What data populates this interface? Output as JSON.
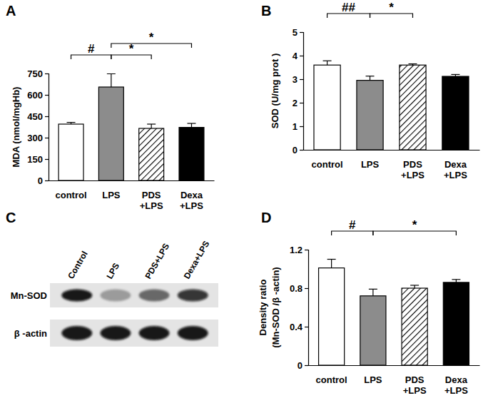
{
  "chart_data": [
    {
      "type": "bar",
      "title": "A",
      "categories": [
        "control",
        "LPS",
        "PDS\n+LPS",
        "Dexa\n+LPS"
      ],
      "values": [
        395,
        655,
        365,
        372
      ],
      "errors": [
        12,
        93,
        30,
        28
      ],
      "colors": [
        "#ffffff",
        "#8c8c8c",
        "#ffffff",
        "#000000"
      ],
      "y_label": "MDA (nmol/mgHb)",
      "ylim": [
        0,
        750
      ],
      "yticks": [
        0,
        150,
        300,
        450,
        600,
        750
      ],
      "annotations": [
        {
          "text": "#",
          "from": 0,
          "to": 1
        },
        {
          "text": "*",
          "from": 1,
          "to": 2
        },
        {
          "text": "*",
          "from": 1,
          "to": 3
        }
      ]
    },
    {
      "type": "bar",
      "title": "B",
      "categories": [
        "control",
        "LPS",
        "PDS\n+LPS",
        "Dexa\n+LPS"
      ],
      "values": [
        3.6,
        2.95,
        3.6,
        3.12
      ],
      "errors": [
        0.18,
        0.18,
        0.05,
        0.08
      ],
      "colors": [
        "#ffffff",
        "#8c8c8c",
        "#ffffff",
        "#000000"
      ],
      "y_label": "SOD  (U/mg prot )",
      "ylim": [
        0,
        5
      ],
      "yticks": [
        0,
        1,
        2,
        3,
        4,
        5
      ],
      "annotations": [
        {
          "text": "##",
          "from": 0,
          "to": 1
        },
        {
          "text": "*",
          "from": 1,
          "to": 2
        }
      ]
    },
    {
      "type": "blot",
      "title": "C",
      "categories": [
        "Control",
        "LPS",
        "PDS+LPS",
        "Dexa+LPS"
      ],
      "series": [
        {
          "name": "Mn-SOD",
          "values": [
            1,
            0.3,
            0.55,
            0.85
          ]
        },
        {
          "name": "β -actin",
          "values": [
            1,
            1,
            1,
            1
          ]
        }
      ]
    },
    {
      "type": "bar",
      "title": "D",
      "categories": [
        "control",
        "LPS",
        "PDS\n+LPS",
        "Dexa\n+LPS"
      ],
      "values": [
        1.01,
        0.72,
        0.8,
        0.86
      ],
      "errors": [
        0.09,
        0.07,
        0.03,
        0.03
      ],
      "colors": [
        "#ffffff",
        "#8c8c8c",
        "#ffffff",
        "#000000"
      ],
      "y_label": [
        "Density ratio",
        "(Mn-SOD /β -actin)"
      ],
      "ylim": [
        0,
        1.2
      ],
      "yticks": [
        0,
        0.4,
        0.8,
        1.2
      ],
      "annotations": [
        {
          "text": "#",
          "from": 0,
          "to": 1
        },
        {
          "text": "*",
          "from": 1,
          "to": 3
        }
      ]
    }
  ]
}
